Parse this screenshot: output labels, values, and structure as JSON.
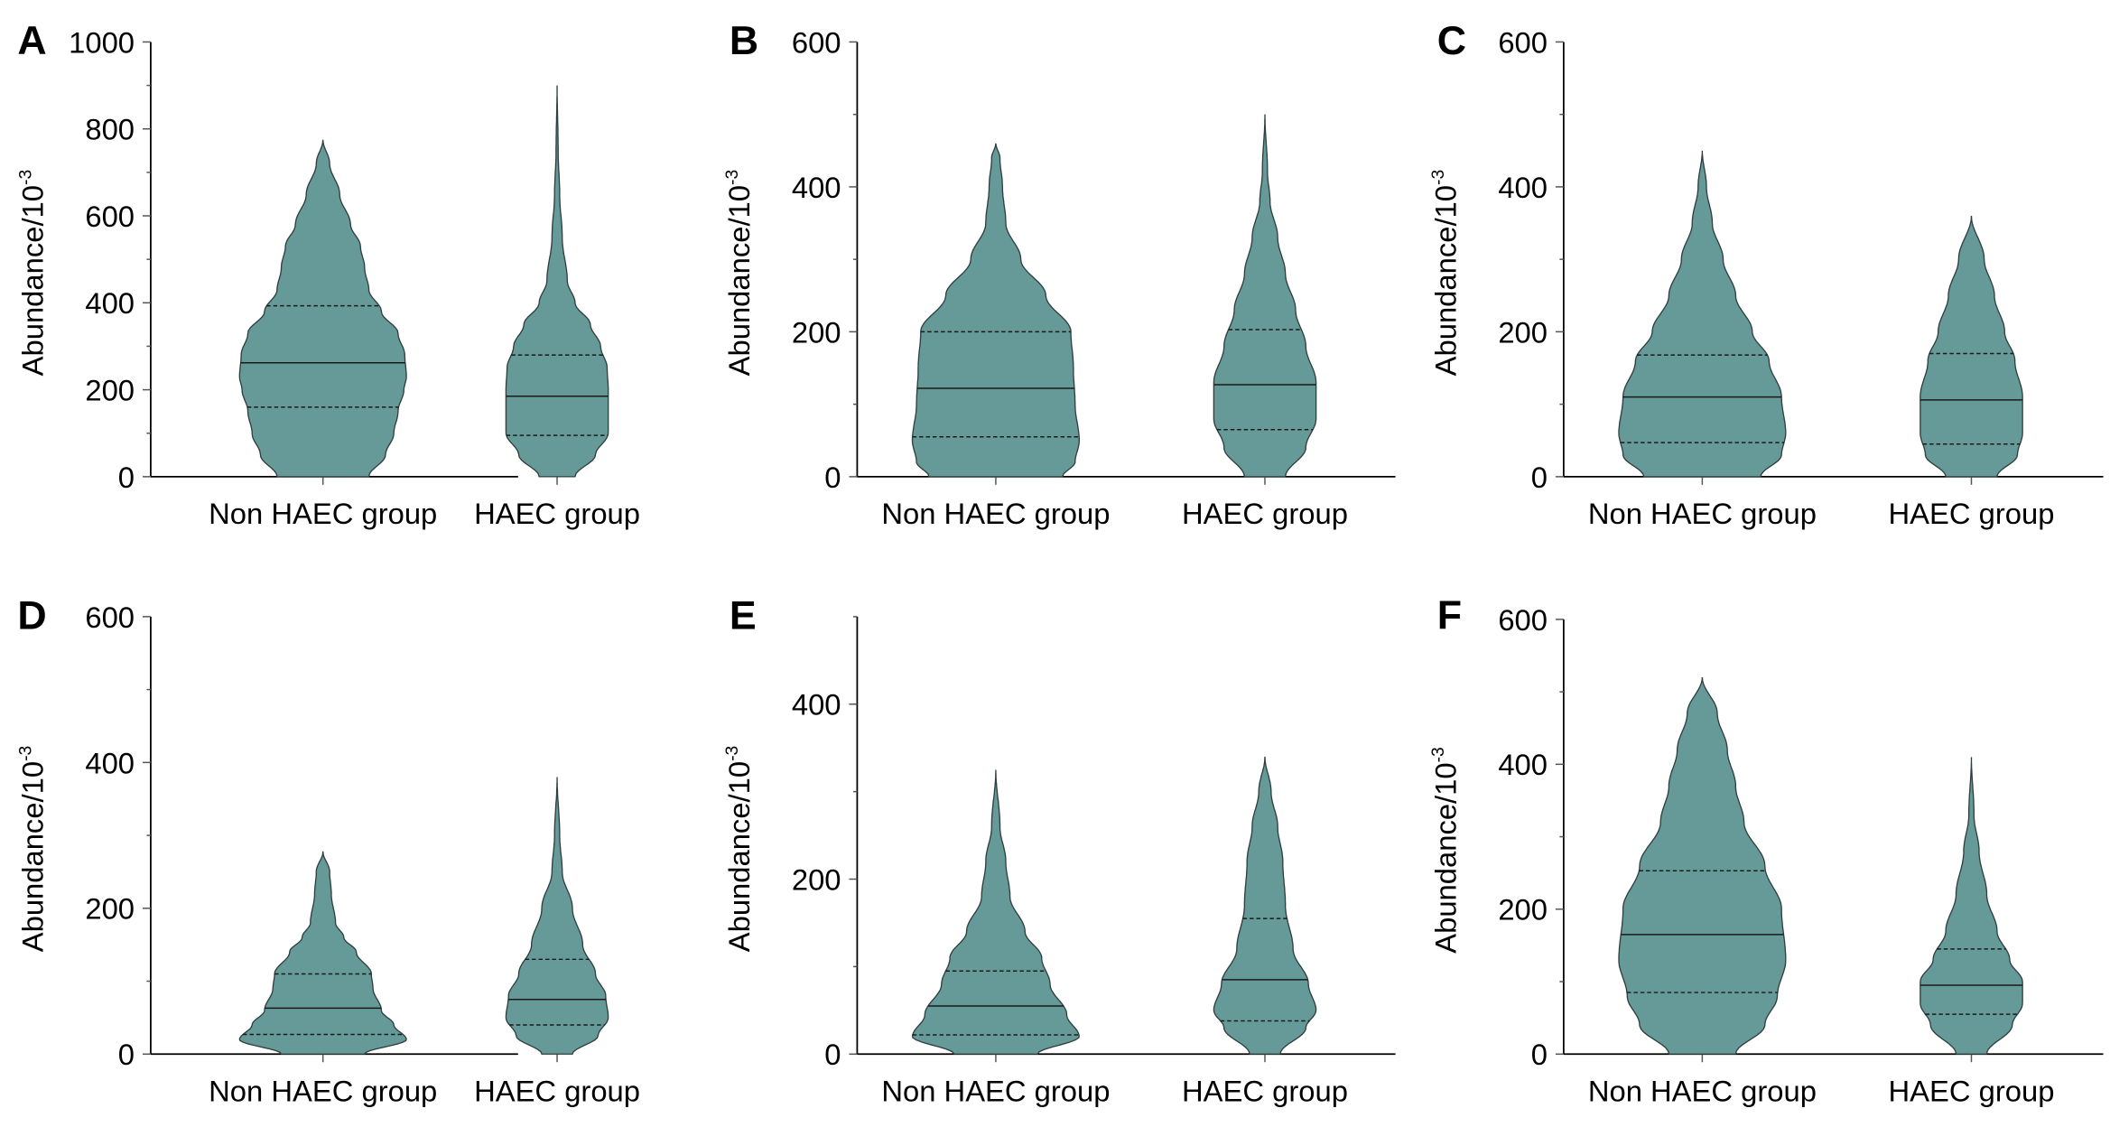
{
  "colors": {
    "violin_fill": "#659a99",
    "violin_stroke": "#2f3f3f",
    "axis": "#000000"
  },
  "chart_data": [
    {
      "panel": "A",
      "type": "violin",
      "ylabel": "Abundance/10",
      "ylabel_sup": "-3",
      "ylim": [
        0,
        1000
      ],
      "yticks": [
        0,
        200,
        400,
        600,
        800,
        1000
      ],
      "ytick_labels": [
        "0",
        "200",
        "400",
        "600",
        "800",
        "1000"
      ],
      "categories": [
        "Non HAEC group",
        "HAEC group"
      ],
      "series": [
        {
          "category": "Non HAEC group",
          "median": 262,
          "q1": 160,
          "q3": 393,
          "max": 775,
          "density": [
            [
              0,
              0.55
            ],
            [
              50,
              0.75
            ],
            [
              100,
              0.85
            ],
            [
              150,
              0.9
            ],
            [
              200,
              0.97
            ],
            [
              230,
              1.0
            ],
            [
              280,
              0.98
            ],
            [
              330,
              0.9
            ],
            [
              380,
              0.7
            ],
            [
              430,
              0.55
            ],
            [
              480,
              0.5
            ],
            [
              530,
              0.45
            ],
            [
              580,
              0.33
            ],
            [
              650,
              0.2
            ],
            [
              720,
              0.08
            ],
            [
              775,
              0
            ]
          ]
        },
        {
          "category": "HAEC group",
          "median": 185,
          "q1": 95,
          "q3": 280,
          "max": 900,
          "density": [
            [
              0,
              0.35
            ],
            [
              50,
              0.75
            ],
            [
              100,
              1.0
            ],
            [
              150,
              1.0
            ],
            [
              200,
              1.0
            ],
            [
              250,
              0.98
            ],
            [
              300,
              0.85
            ],
            [
              350,
              0.65
            ],
            [
              400,
              0.35
            ],
            [
              450,
              0.2
            ],
            [
              550,
              0.1
            ],
            [
              650,
              0.05
            ],
            [
              750,
              0.02
            ],
            [
              900,
              0
            ]
          ]
        }
      ]
    },
    {
      "panel": "B",
      "type": "violin",
      "ylabel": "Abundance/10",
      "ylabel_sup": "-3",
      "ylim": [
        0,
        600
      ],
      "yticks": [
        0,
        200,
        400,
        600
      ],
      "ytick_labels": [
        "0",
        "200",
        "400",
        "600"
      ],
      "categories": [
        "Non HAEC group",
        "HAEC group"
      ],
      "series": [
        {
          "category": "Non HAEC group",
          "median": 122,
          "q1": 55,
          "q3": 200,
          "max": 460,
          "density": [
            [
              0,
              0.8
            ],
            [
              20,
              0.95
            ],
            [
              50,
              1.0
            ],
            [
              100,
              0.95
            ],
            [
              150,
              0.93
            ],
            [
              200,
              0.9
            ],
            [
              250,
              0.6
            ],
            [
              300,
              0.3
            ],
            [
              350,
              0.12
            ],
            [
              400,
              0.08
            ],
            [
              440,
              0.05
            ],
            [
              460,
              0
            ]
          ]
        },
        {
          "category": "HAEC group",
          "median": 127,
          "q1": 65,
          "q3": 203,
          "max": 500,
          "density": [
            [
              0,
              0.4
            ],
            [
              40,
              0.8
            ],
            [
              80,
              1.0
            ],
            [
              130,
              1.0
            ],
            [
              180,
              0.8
            ],
            [
              230,
              0.6
            ],
            [
              280,
              0.4
            ],
            [
              330,
              0.25
            ],
            [
              380,
              0.1
            ],
            [
              420,
              0.05
            ],
            [
              500,
              0
            ]
          ]
        }
      ]
    },
    {
      "panel": "C",
      "type": "violin",
      "ylabel": "Abundance/10",
      "ylabel_sup": "-3",
      "ylim": [
        0,
        600
      ],
      "yticks": [
        0,
        200,
        400,
        600
      ],
      "ytick_labels": [
        "0",
        "200",
        "400",
        "600"
      ],
      "categories": [
        "Non HAEC group",
        "HAEC group"
      ],
      "series": [
        {
          "category": "Non HAEC group",
          "median": 110,
          "q1": 47,
          "q3": 168,
          "max": 450,
          "density": [
            [
              0,
              0.7
            ],
            [
              30,
              0.95
            ],
            [
              60,
              1.0
            ],
            [
              110,
              0.95
            ],
            [
              160,
              0.8
            ],
            [
              200,
              0.6
            ],
            [
              250,
              0.4
            ],
            [
              300,
              0.25
            ],
            [
              350,
              0.12
            ],
            [
              400,
              0.05
            ],
            [
              450,
              0
            ]
          ]
        },
        {
          "category": "HAEC group",
          "median": 106,
          "q1": 45,
          "q3": 170,
          "max": 360,
          "density": [
            [
              0,
              0.5
            ],
            [
              30,
              0.9
            ],
            [
              60,
              1.0
            ],
            [
              110,
              1.0
            ],
            [
              160,
              0.85
            ],
            [
              200,
              0.65
            ],
            [
              250,
              0.45
            ],
            [
              300,
              0.25
            ],
            [
              360,
              0
            ]
          ]
        }
      ]
    },
    {
      "panel": "D",
      "type": "violin",
      "ylabel": "Abundance/10",
      "ylabel_sup": "-3",
      "ylim": [
        0,
        600
      ],
      "yticks": [
        0,
        200,
        400,
        600
      ],
      "ytick_labels": [
        "0",
        "200",
        "400",
        "600"
      ],
      "categories": [
        "Non HAEC group",
        "HAEC group"
      ],
      "series": [
        {
          "category": "Non HAEC group",
          "median": 63,
          "q1": 27,
          "q3": 110,
          "max": 278,
          "density": [
            [
              0,
              0.5
            ],
            [
              20,
              1.0
            ],
            [
              40,
              0.85
            ],
            [
              60,
              0.7
            ],
            [
              90,
              0.6
            ],
            [
              110,
              0.58
            ],
            [
              140,
              0.4
            ],
            [
              160,
              0.25
            ],
            [
              180,
              0.15
            ],
            [
              220,
              0.1
            ],
            [
              250,
              0.08
            ],
            [
              278,
              0
            ]
          ]
        },
        {
          "category": "HAEC group",
          "median": 75,
          "q1": 40,
          "q3": 130,
          "max": 380,
          "density": [
            [
              0,
              0.3
            ],
            [
              25,
              0.8
            ],
            [
              50,
              1.0
            ],
            [
              80,
              0.95
            ],
            [
              110,
              0.75
            ],
            [
              150,
              0.5
            ],
            [
              200,
              0.3
            ],
            [
              250,
              0.1
            ],
            [
              300,
              0.05
            ],
            [
              380,
              0
            ]
          ]
        }
      ]
    },
    {
      "panel": "E",
      "type": "violin",
      "ylabel": "Abundance/10",
      "ylabel_sup": "-3",
      "ylim": [
        0,
        500
      ],
      "yticks": [
        0,
        200,
        400
      ],
      "ytick_labels": [
        "0",
        "200",
        "400"
      ],
      "categories": [
        "Non HAEC group",
        "HAEC group"
      ],
      "series": [
        {
          "category": "Non HAEC group",
          "median": 55,
          "q1": 22,
          "q3": 95,
          "max": 325,
          "density": [
            [
              0,
              0.5
            ],
            [
              20,
              1.0
            ],
            [
              45,
              0.85
            ],
            [
              80,
              0.65
            ],
            [
              110,
              0.55
            ],
            [
              140,
              0.35
            ],
            [
              180,
              0.17
            ],
            [
              220,
              0.12
            ],
            [
              260,
              0.05
            ],
            [
              325,
              0
            ]
          ]
        },
        {
          "category": "HAEC group",
          "median": 85,
          "q1": 38,
          "q3": 155,
          "max": 340,
          "density": [
            [
              0,
              0.3
            ],
            [
              30,
              0.8
            ],
            [
              50,
              1.0
            ],
            [
              80,
              0.85
            ],
            [
              120,
              0.55
            ],
            [
              170,
              0.4
            ],
            [
              220,
              0.35
            ],
            [
              260,
              0.25
            ],
            [
              300,
              0.12
            ],
            [
              340,
              0
            ]
          ]
        }
      ]
    },
    {
      "panel": "F",
      "type": "violin",
      "ylabel": "Abundance/10",
      "ylabel_sup": "-3",
      "ylim": [
        0,
        600
      ],
      "yticks": [
        0,
        200,
        400,
        600
      ],
      "ytick_labels": [
        "0",
        "200",
        "400",
        "600"
      ],
      "categories": [
        "Non HAEC group",
        "HAEC group"
      ],
      "series": [
        {
          "category": "Non HAEC group",
          "median": 165,
          "q1": 85,
          "q3": 253,
          "max": 520,
          "density": [
            [
              0,
              0.4
            ],
            [
              40,
              0.75
            ],
            [
              80,
              0.9
            ],
            [
              130,
              1.0
            ],
            [
              200,
              0.95
            ],
            [
              260,
              0.75
            ],
            [
              320,
              0.5
            ],
            [
              370,
              0.4
            ],
            [
              420,
              0.3
            ],
            [
              470,
              0.18
            ],
            [
              520,
              0
            ]
          ]
        },
        {
          "category": "HAEC group",
          "median": 95,
          "q1": 55,
          "q3": 145,
          "max": 410,
          "density": [
            [
              0,
              0.3
            ],
            [
              40,
              0.8
            ],
            [
              70,
              1.0
            ],
            [
              100,
              1.0
            ],
            [
              130,
              0.75
            ],
            [
              170,
              0.5
            ],
            [
              220,
              0.3
            ],
            [
              280,
              0.15
            ],
            [
              330,
              0.05
            ],
            [
              410,
              0
            ]
          ]
        }
      ]
    }
  ]
}
